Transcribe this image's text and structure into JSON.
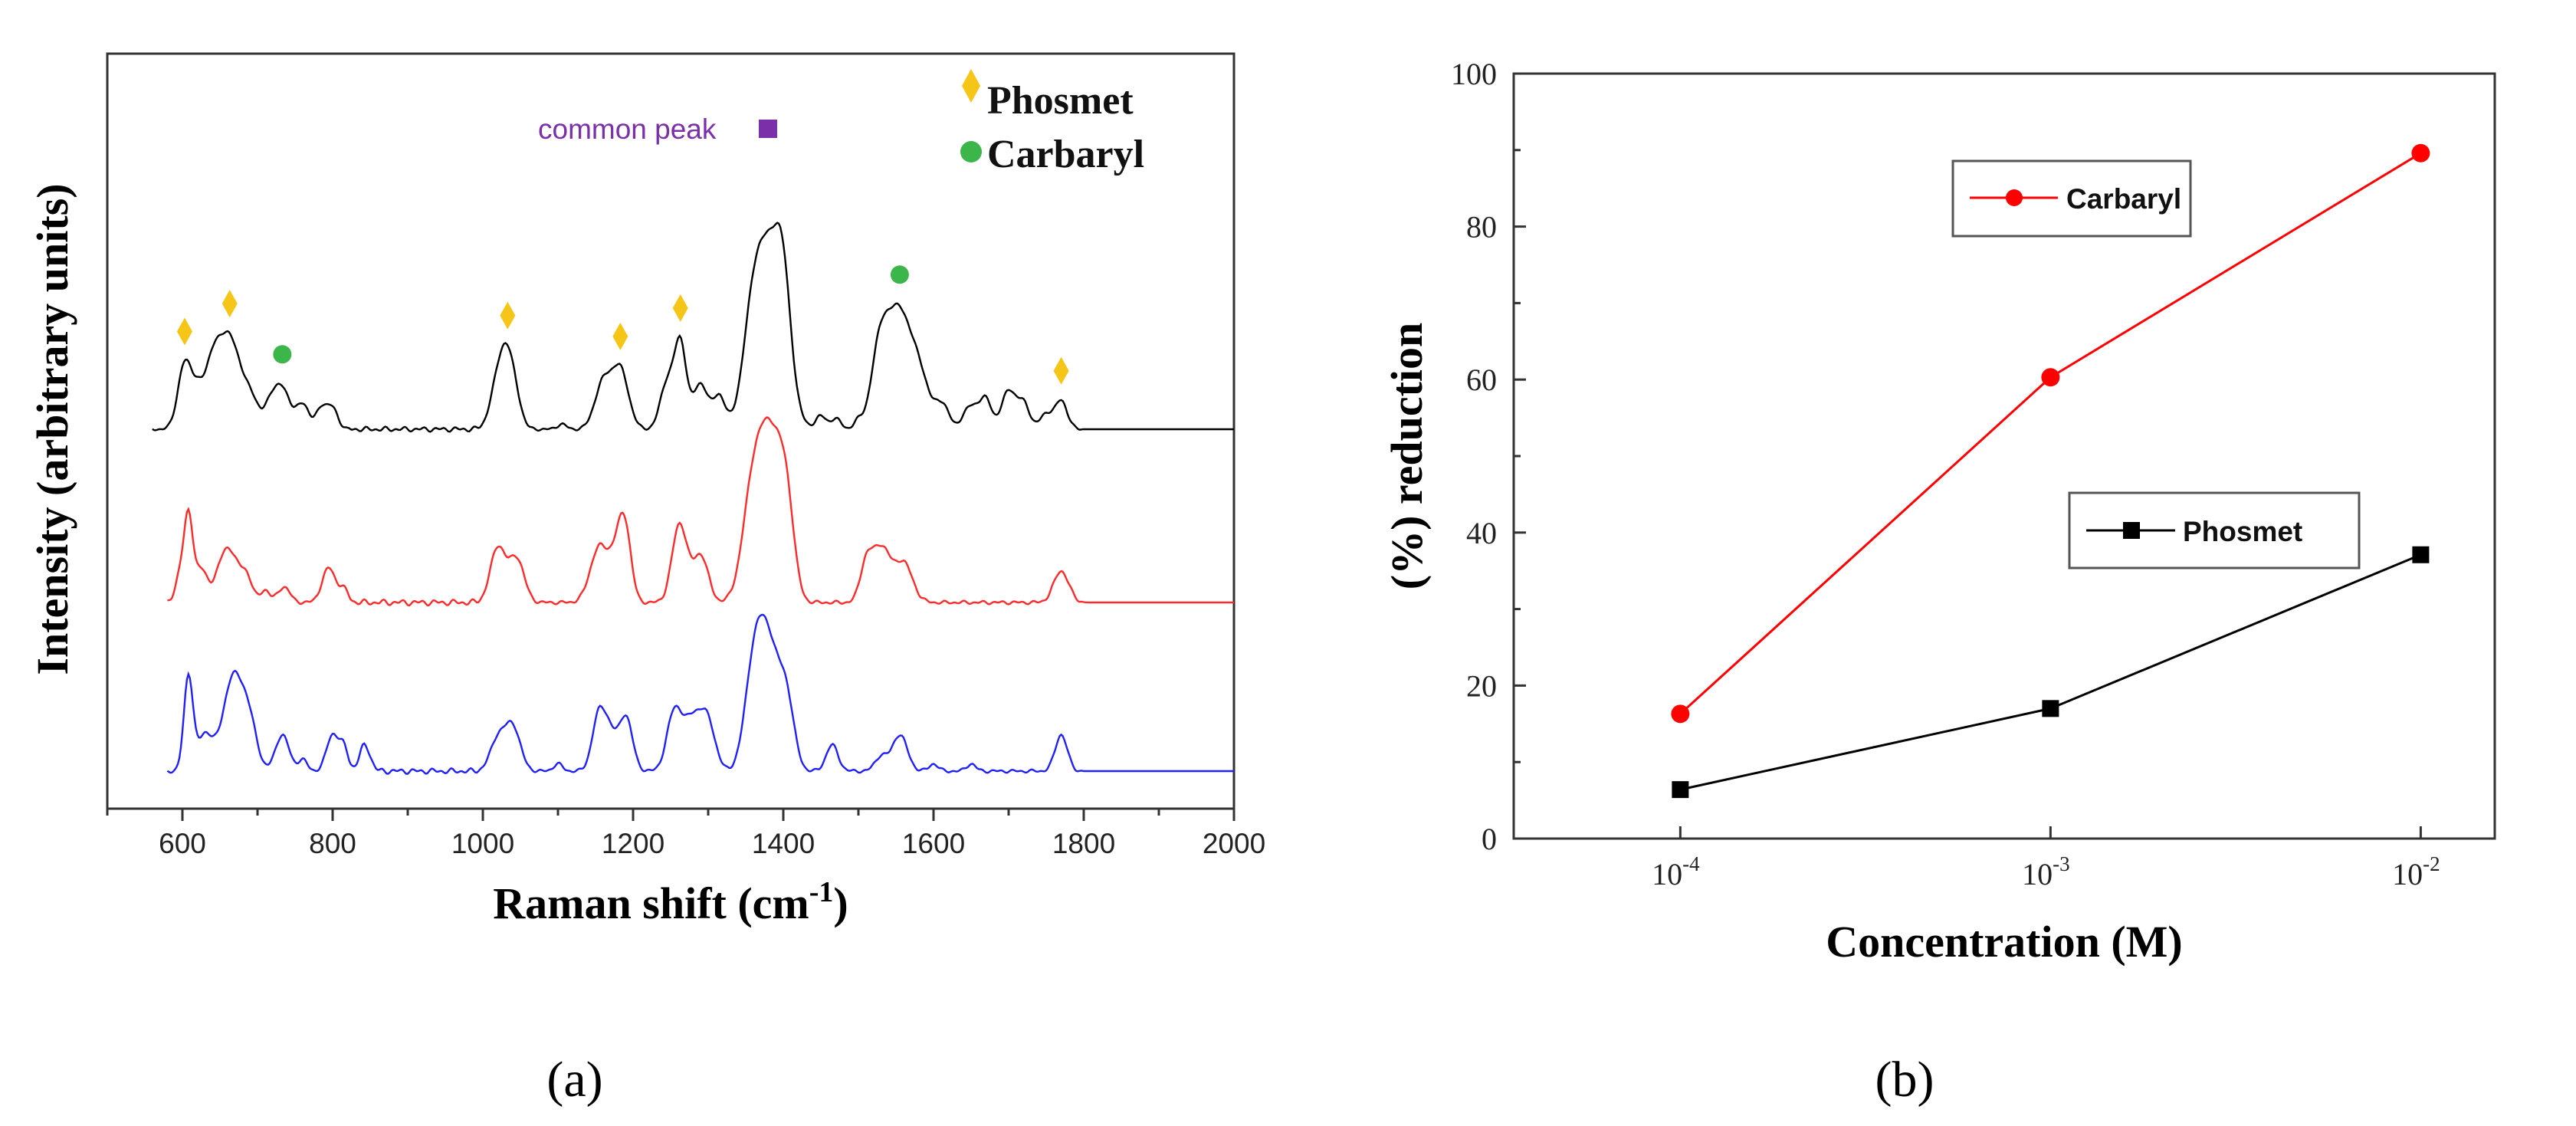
{
  "colors": {
    "phosmet_marker": "#f5c518",
    "carbaryl_marker": "#3cb54a",
    "common_marker": "#7b2fa8",
    "trace_black": "#000000",
    "trace_red": "#ff2a2a",
    "trace_blue": "#2020ff",
    "series_red": "#ff0000",
    "series_black": "#000000"
  },
  "chart_data": [
    {
      "type": "line",
      "panel_label": "(a)",
      "title": "",
      "xlabel": "Raman shift (cm-1)",
      "xlabel_main": "Raman shift (cm",
      "xlabel_sup": "-1",
      "xlabel_end": ")",
      "ylabel": "Intensity (arbitrary units)",
      "xlim": [
        500,
        2000
      ],
      "xticks": [
        "600",
        "800",
        "1000",
        "1200",
        "1400",
        "1600",
        "1800",
        "2000"
      ],
      "legend": [
        {
          "label": "Phosmet",
          "marker": "diamond"
        },
        {
          "label": "Carbaryl",
          "marker": "circle"
        }
      ],
      "annotation": {
        "label": "common peak",
        "x": 1385,
        "marker": "square"
      },
      "phosmet_peaks": [
        603,
        663,
        1033,
        1183,
        1263,
        1770
      ],
      "carbaryl_peaks": [
        733,
        1555
      ],
      "series": [
        {
          "name": "trace-black",
          "color": "#000000",
          "baseline": 0.0,
          "x_start": 560,
          "x_end": 2000,
          "peaks": [
            [
              603,
              0.5,
              9
            ],
            [
              620,
              0.25,
              8
            ],
            [
              640,
              0.48,
              10
            ],
            [
              663,
              0.7,
              13
            ],
            [
              690,
              0.25,
              10
            ],
            [
              716,
              0.18,
              8
            ],
            [
              733,
              0.32,
              10
            ],
            [
              760,
              0.2,
              8
            ],
            [
              785,
              0.17,
              7
            ],
            [
              800,
              0.16,
              7
            ],
            [
              1020,
              0.35,
              10
            ],
            [
              1033,
              0.45,
              9
            ],
            [
              1045,
              0.15,
              8
            ],
            [
              1105,
              0.04,
              6
            ],
            [
              1160,
              0.35,
              11
            ],
            [
              1183,
              0.45,
              11
            ],
            [
              1245,
              0.35,
              9
            ],
            [
              1263,
              0.65,
              8
            ],
            [
              1290,
              0.35,
              10
            ],
            [
              1315,
              0.25,
              8
            ],
            [
              1360,
              0.75,
              14
            ],
            [
              1385,
              1.22,
              18
            ],
            [
              1400,
              0.55,
              10
            ],
            [
              1450,
              0.1,
              7
            ],
            [
              1470,
              0.08,
              7
            ],
            [
              1500,
              0.06,
              6
            ],
            [
              1530,
              0.7,
              12
            ],
            [
              1555,
              0.82,
              13
            ],
            [
              1580,
              0.45,
              12
            ],
            [
              1610,
              0.2,
              10
            ],
            [
              1650,
              0.18,
              10
            ],
            [
              1670,
              0.22,
              8
            ],
            [
              1700,
              0.3,
              9
            ],
            [
              1720,
              0.2,
              8
            ],
            [
              1750,
              0.12,
              8
            ],
            [
              1770,
              0.22,
              8
            ]
          ]
        },
        {
          "name": "trace-red",
          "color": "#ff2a2a",
          "baseline": 0.0,
          "x_start": 580,
          "x_end": 2000,
          "peaks": [
            [
              596,
              0.15,
              6
            ],
            [
              608,
              0.55,
              6
            ],
            [
              625,
              0.2,
              8
            ],
            [
              660,
              0.35,
              13
            ],
            [
              685,
              0.15,
              8
            ],
            [
              710,
              0.08,
              6
            ],
            [
              735,
              0.1,
              8
            ],
            [
              795,
              0.22,
              9
            ],
            [
              815,
              0.08,
              6
            ],
            [
              1020,
              0.35,
              10
            ],
            [
              1045,
              0.28,
              10
            ],
            [
              1155,
              0.35,
              12
            ],
            [
              1180,
              0.3,
              10
            ],
            [
              1190,
              0.35,
              8
            ],
            [
              1262,
              0.5,
              10
            ],
            [
              1290,
              0.3,
              10
            ],
            [
              1360,
              0.7,
              14
            ],
            [
              1385,
              0.95,
              15
            ],
            [
              1405,
              0.45,
              10
            ],
            [
              1510,
              0.22,
              8
            ],
            [
              1530,
              0.35,
              12
            ],
            [
              1560,
              0.25,
              12
            ],
            [
              1770,
              0.2,
              10
            ]
          ]
        },
        {
          "name": "trace-blue",
          "color": "#2020ff",
          "baseline": 0.0,
          "x_start": 580,
          "x_end": 2000,
          "peaks": [
            [
              608,
              0.65,
              6
            ],
            [
              630,
              0.25,
              10
            ],
            [
              668,
              0.65,
              14
            ],
            [
              690,
              0.25,
              10
            ],
            [
              733,
              0.25,
              9
            ],
            [
              760,
              0.08,
              6
            ],
            [
              800,
              0.25,
              8
            ],
            [
              815,
              0.15,
              6
            ],
            [
              843,
              0.18,
              7
            ],
            [
              1020,
              0.22,
              10
            ],
            [
              1040,
              0.3,
              10
            ],
            [
              1100,
              0.05,
              6
            ],
            [
              1155,
              0.4,
              9
            ],
            [
              1170,
              0.2,
              8
            ],
            [
              1190,
              0.38,
              9
            ],
            [
              1255,
              0.4,
              10
            ],
            [
              1280,
              0.35,
              12
            ],
            [
              1300,
              0.3,
              10
            ],
            [
              1360,
              0.55,
              12
            ],
            [
              1380,
              0.85,
              15
            ],
            [
              1405,
              0.4,
              10
            ],
            [
              1465,
              0.18,
              8
            ],
            [
              1530,
              0.1,
              8
            ],
            [
              1555,
              0.25,
              10
            ],
            [
              1600,
              0.05,
              6
            ],
            [
              1650,
              0.05,
              6
            ],
            [
              1770,
              0.25,
              8
            ]
          ]
        }
      ]
    },
    {
      "type": "line",
      "panel_label": "(b)",
      "title": "",
      "xlabel": "Concentration (M)",
      "ylabel": "(%) reduction",
      "xscale": "log",
      "xlim_exp": [
        -4.45,
        -1.8
      ],
      "ylim": [
        0,
        100
      ],
      "yticks": [
        0,
        20,
        40,
        60,
        80,
        100
      ],
      "xticks": [
        {
          "base": "10",
          "exp": "-4",
          "value": -4
        },
        {
          "base": "10",
          "exp": "-3",
          "value": -3
        },
        {
          "base": "10",
          "exp": "-2",
          "value": -2
        }
      ],
      "series": [
        {
          "name": "Carbaryl",
          "color": "#ff0000",
          "marker": "circle",
          "x": [
            0.0001,
            0.001,
            0.01
          ],
          "y": [
            16.3,
            60.3,
            89.6
          ]
        },
        {
          "name": "Phosmet",
          "color": "#000000",
          "marker": "square",
          "x": [
            0.0001,
            0.001,
            0.01
          ],
          "y": [
            6.4,
            17.0,
            37.1
          ]
        }
      ]
    }
  ]
}
